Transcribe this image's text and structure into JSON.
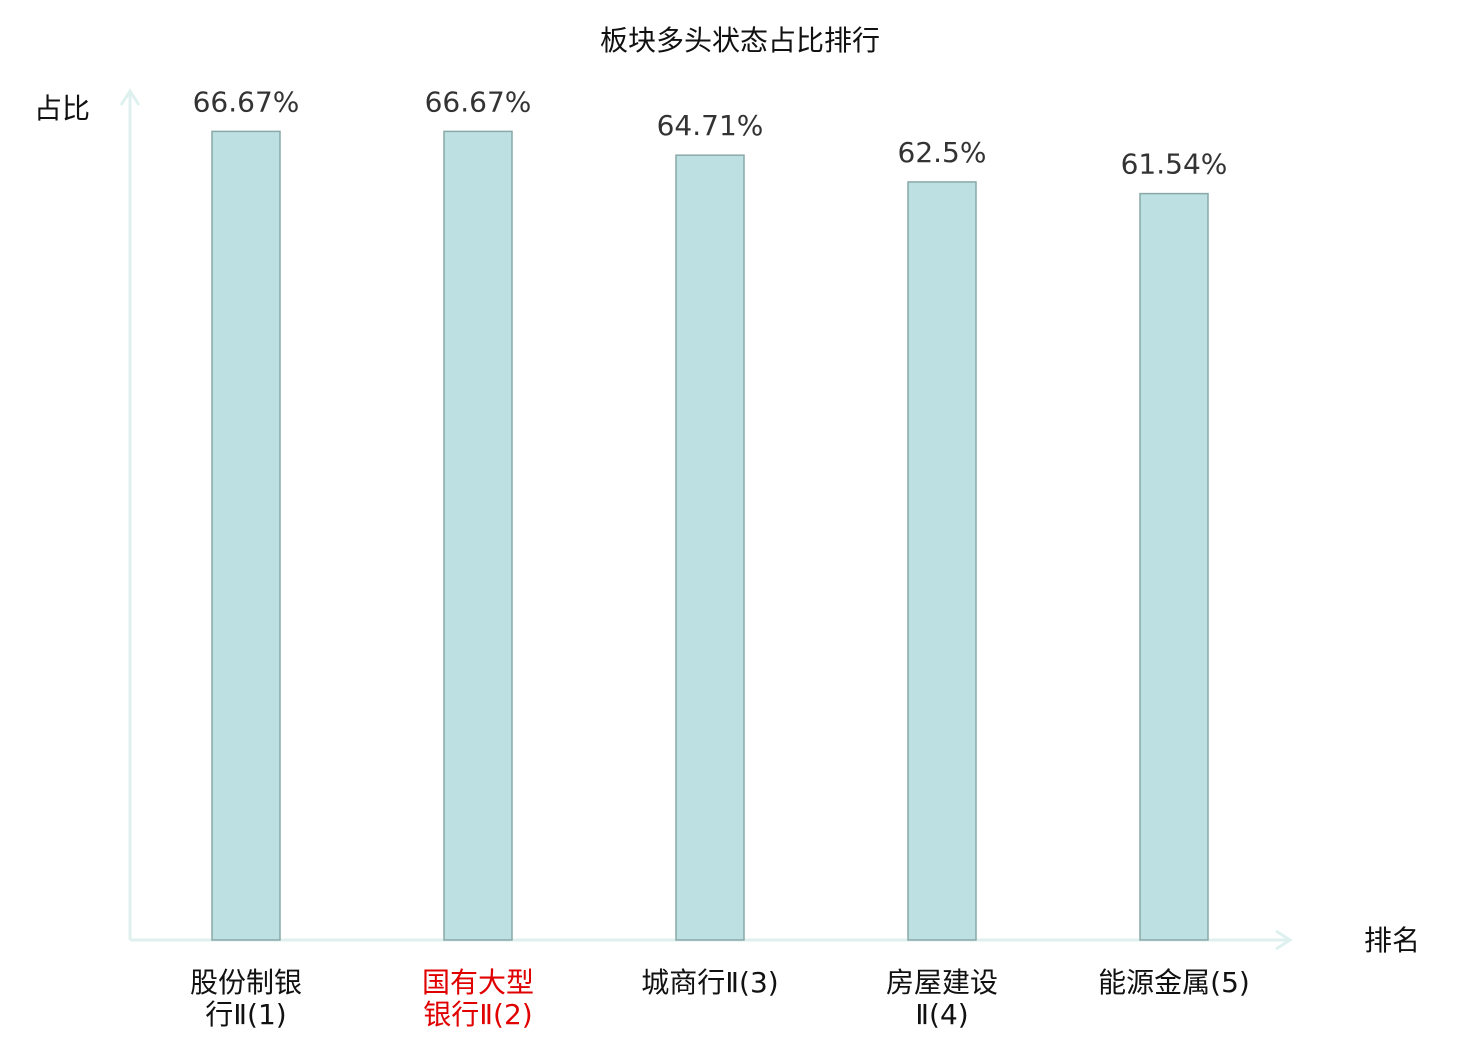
{
  "chart_data": {
    "type": "bar",
    "title": "板块多头状态占比排行",
    "y_label": "占比",
    "x_label": "排名",
    "categories": [
      "股份制银行Ⅱ(1)",
      "国有大型银行Ⅱ(2)",
      "城商行Ⅱ(3)",
      "房屋建设Ⅱ(4)",
      "能源金属(5)"
    ],
    "category_colors": [
      "#111111",
      "#e00000",
      "#111111",
      "#111111",
      "#111111"
    ],
    "values": [
      66.67,
      66.67,
      64.71,
      62.5,
      61.54
    ],
    "value_labels": [
      "66.67%",
      "66.67%",
      "64.71%",
      "62.5%",
      "61.54%"
    ],
    "color": "#bde0e3",
    "edge_color": "#8aa8a8",
    "ylim": [
      0,
      70
    ]
  }
}
